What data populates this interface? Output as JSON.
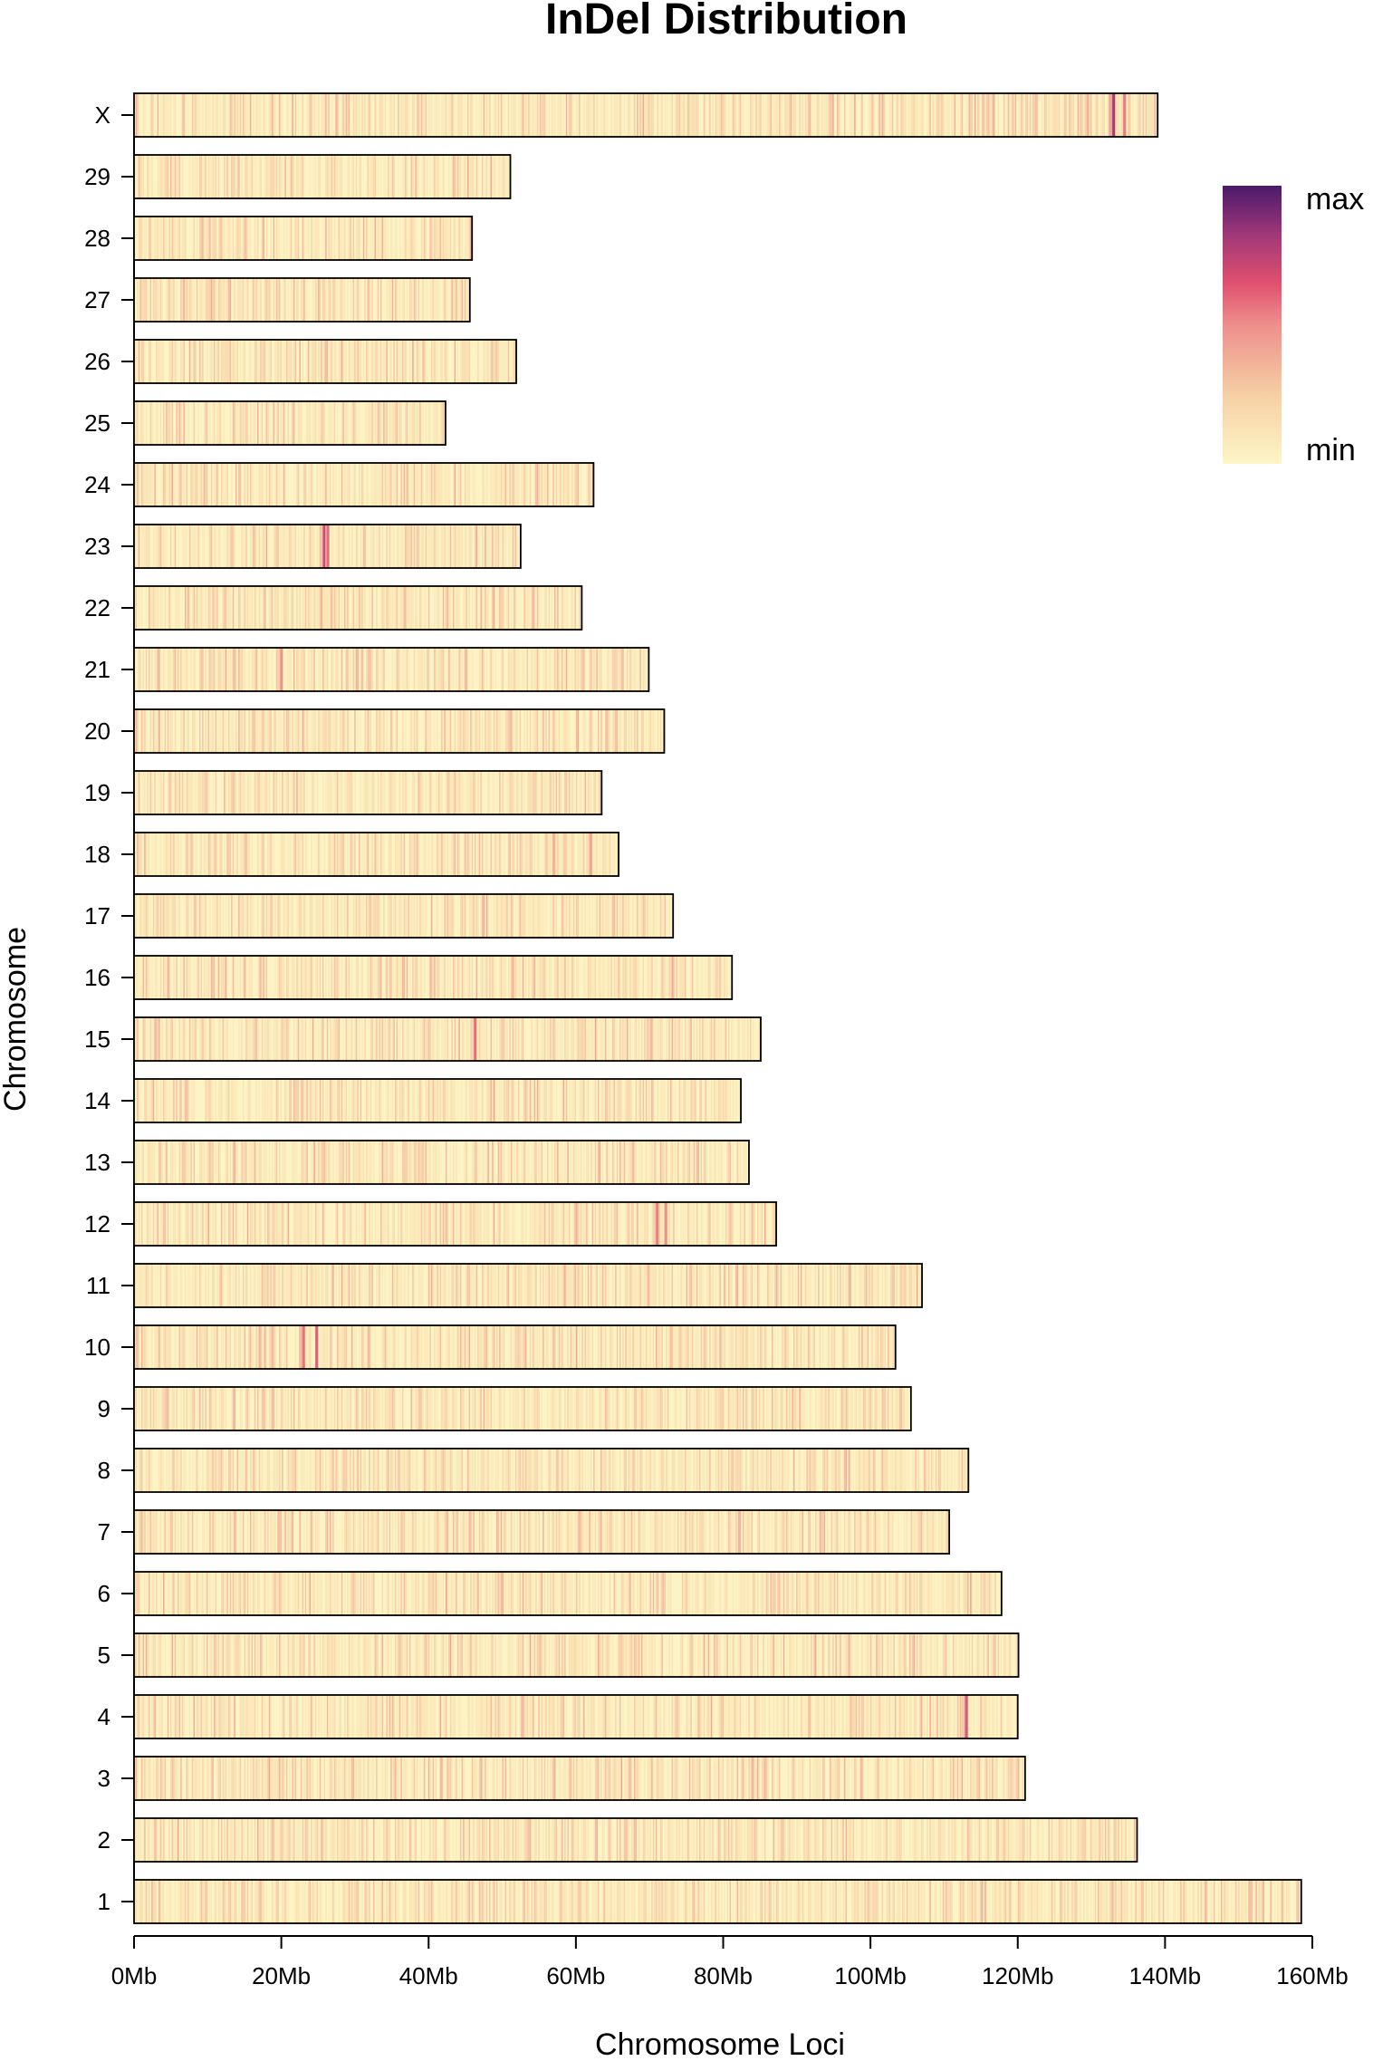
{
  "chart_data": {
    "type": "heatmap",
    "title": "InDel  Distribution",
    "xlabel": "Chromosome Loci",
    "ylabel": "Chromosome",
    "xlim": [
      0,
      160
    ],
    "x_unit": "Mb",
    "x_ticks": [
      "0Mb",
      "20Mb",
      "40Mb",
      "60Mb",
      "80Mb",
      "100Mb",
      "120Mb",
      "140Mb",
      "160Mb"
    ],
    "x_tick_values": [
      0,
      20,
      40,
      60,
      80,
      100,
      120,
      140,
      160
    ],
    "legend": {
      "max_label": "max",
      "min_label": "min",
      "placement": "top-right"
    },
    "color_scale": [
      "#fdf6c6",
      "#f8d8a8",
      "#f0aa95",
      "#e56b7a",
      "#c0447a",
      "#7a2b7a",
      "#4a1a6b"
    ],
    "chromosomes": [
      {
        "name": "X",
        "length_mb": 139.0,
        "hotspots": [
          {
            "pos_mb": 133.0,
            "level": 0.75
          },
          {
            "pos_mb": 134.5,
            "level": 0.45
          },
          {
            "pos_mb": 129.5,
            "level": 0.3
          }
        ]
      },
      {
        "name": "29",
        "length_mb": 51.1,
        "hotspots": []
      },
      {
        "name": "28",
        "length_mb": 45.9,
        "hotspots": []
      },
      {
        "name": "27",
        "length_mb": 45.6,
        "hotspots": []
      },
      {
        "name": "26",
        "length_mb": 51.9,
        "hotspots": []
      },
      {
        "name": "25",
        "length_mb": 42.3,
        "hotspots": []
      },
      {
        "name": "24",
        "length_mb": 62.4,
        "hotspots": []
      },
      {
        "name": "23",
        "length_mb": 52.5,
        "hotspots": [
          {
            "pos_mb": 25.8,
            "level": 0.65
          },
          {
            "pos_mb": 26.3,
            "level": 0.5
          }
        ]
      },
      {
        "name": "22",
        "length_mb": 60.8,
        "hotspots": []
      },
      {
        "name": "21",
        "length_mb": 69.9,
        "hotspots": [
          {
            "pos_mb": 20.0,
            "level": 0.4
          }
        ]
      },
      {
        "name": "20",
        "length_mb": 72.0,
        "hotspots": []
      },
      {
        "name": "19",
        "length_mb": 63.5,
        "hotspots": []
      },
      {
        "name": "18",
        "length_mb": 65.8,
        "hotspots": [
          {
            "pos_mb": 62.0,
            "level": 0.35
          },
          {
            "pos_mb": 57.0,
            "level": 0.3
          }
        ]
      },
      {
        "name": "17",
        "length_mb": 73.2,
        "hotspots": []
      },
      {
        "name": "16",
        "length_mb": 81.2,
        "hotspots": []
      },
      {
        "name": "15",
        "length_mb": 85.1,
        "hotspots": [
          {
            "pos_mb": 46.3,
            "level": 0.5
          }
        ]
      },
      {
        "name": "14",
        "length_mb": 82.4,
        "hotspots": []
      },
      {
        "name": "13",
        "length_mb": 83.5,
        "hotspots": []
      },
      {
        "name": "12",
        "length_mb": 87.2,
        "hotspots": [
          {
            "pos_mb": 71.0,
            "level": 0.45
          },
          {
            "pos_mb": 72.2,
            "level": 0.4
          }
        ]
      },
      {
        "name": "11",
        "length_mb": 107.0,
        "hotspots": []
      },
      {
        "name": "10",
        "length_mb": 103.4,
        "hotspots": [
          {
            "pos_mb": 23.0,
            "level": 0.5
          },
          {
            "pos_mb": 24.8,
            "level": 0.55
          }
        ]
      },
      {
        "name": "9",
        "length_mb": 105.5,
        "hotspots": []
      },
      {
        "name": "8",
        "length_mb": 113.3,
        "hotspots": []
      },
      {
        "name": "7",
        "length_mb": 110.7,
        "hotspots": []
      },
      {
        "name": "6",
        "length_mb": 117.8,
        "hotspots": []
      },
      {
        "name": "5",
        "length_mb": 120.1,
        "hotspots": []
      },
      {
        "name": "4",
        "length_mb": 120.0,
        "hotspots": [
          {
            "pos_mb": 113.0,
            "level": 0.6
          }
        ]
      },
      {
        "name": "3",
        "length_mb": 121.0,
        "hotspots": []
      },
      {
        "name": "2",
        "length_mb": 136.2,
        "hotspots": []
      },
      {
        "name": "1",
        "length_mb": 158.5,
        "hotspots": []
      }
    ]
  }
}
